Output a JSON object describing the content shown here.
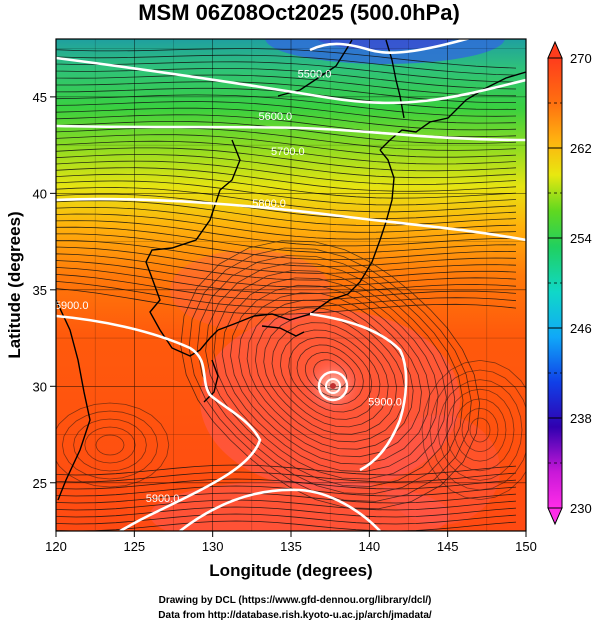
{
  "chart_data": {
    "type": "heatmap",
    "title": "MSM 06Z08Oct2025 (500.0hPa)",
    "xlabel": "Longitude (degrees)",
    "ylabel": "Latitude  (degrees)",
    "xlim": [
      120,
      150
    ],
    "ylim": [
      22.5,
      48
    ],
    "xticks": [
      "120",
      "125",
      "130",
      "135",
      "140",
      "145",
      "150"
    ],
    "yticks": [
      "25",
      "30",
      "35",
      "40",
      "45"
    ],
    "colorbar": {
      "min": 230,
      "max": 270,
      "ticks": [
        "230",
        "238",
        "246",
        "254",
        "262",
        "270"
      ]
    },
    "contours": [
      {
        "label": "5500.0",
        "lon": 136.5,
        "lat": 46.0
      },
      {
        "label": "5600.0",
        "lon": 134.0,
        "lat": 43.8
      },
      {
        "label": "5700.0",
        "lon": 134.8,
        "lat": 42.0
      },
      {
        "label": "5800.0",
        "lon": 133.6,
        "lat": 39.3
      },
      {
        "label": "5900.0",
        "lon": 121.0,
        "lat": 34.0
      },
      {
        "label": "5900.0",
        "lon": 141.0,
        "lat": 29.0
      },
      {
        "label": "5900.0",
        "lon": 126.8,
        "lat": 24.0
      }
    ],
    "grid": true,
    "typhoon_center": {
      "lon": 137.5,
      "lat": 30.6
    },
    "credit_lines": [
      "Drawing by DCL (https://www.gfd-dennou.org/library/dcl/)",
      "Data from http://database.rish.kyoto-u.ac.jp/arch/jmadata/"
    ]
  }
}
